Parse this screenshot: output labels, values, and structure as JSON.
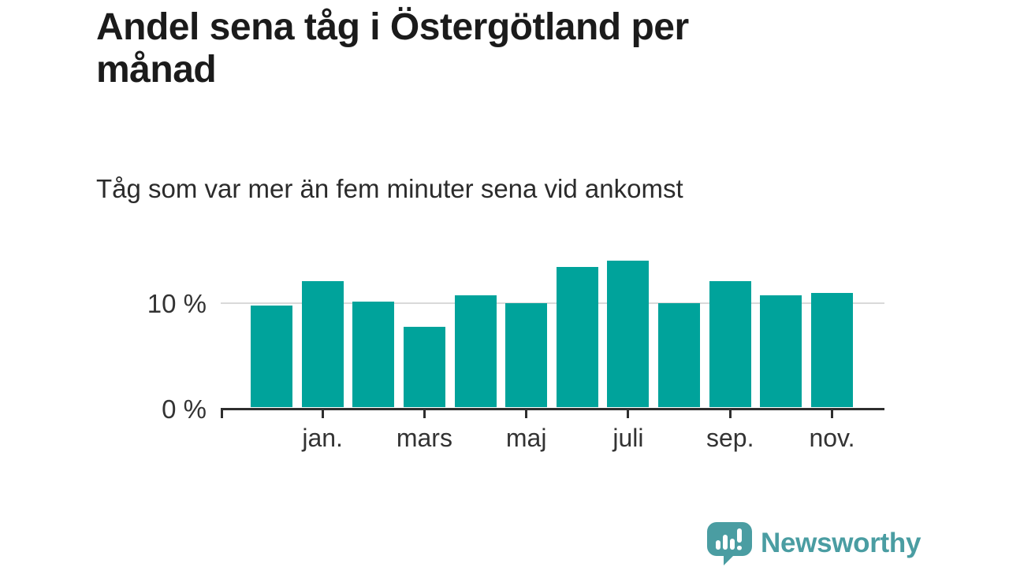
{
  "title": "Andel sena tåg i Östergötland per månad",
  "subtitle": "Tåg som var mer än fem minuter sena vid ankomst",
  "chart_data": {
    "type": "bar",
    "unit": "%",
    "categories": [
      "",
      "jan.",
      "",
      "mars",
      "",
      "maj",
      "",
      "juli",
      "",
      "sep.",
      "",
      "nov."
    ],
    "values": [
      9.7,
      12.0,
      10.1,
      7.7,
      10.7,
      9.9,
      13.4,
      14.0,
      9.9,
      12.0,
      10.7,
      10.9
    ],
    "y_tick_labels": [
      "0 %",
      "10 %"
    ],
    "ylim": [
      0,
      15
    ],
    "gridline_at": 10,
    "bar_color": "#00a39b",
    "axis_color": "#2e2e2e",
    "gridline_color": "#d9d9d9",
    "legend": "none"
  },
  "footer": {
    "brand": "Newsworthy",
    "brand_color": "#4a9da2",
    "logo_icon": "newsworthy-bars-speech-bubble-icon"
  }
}
